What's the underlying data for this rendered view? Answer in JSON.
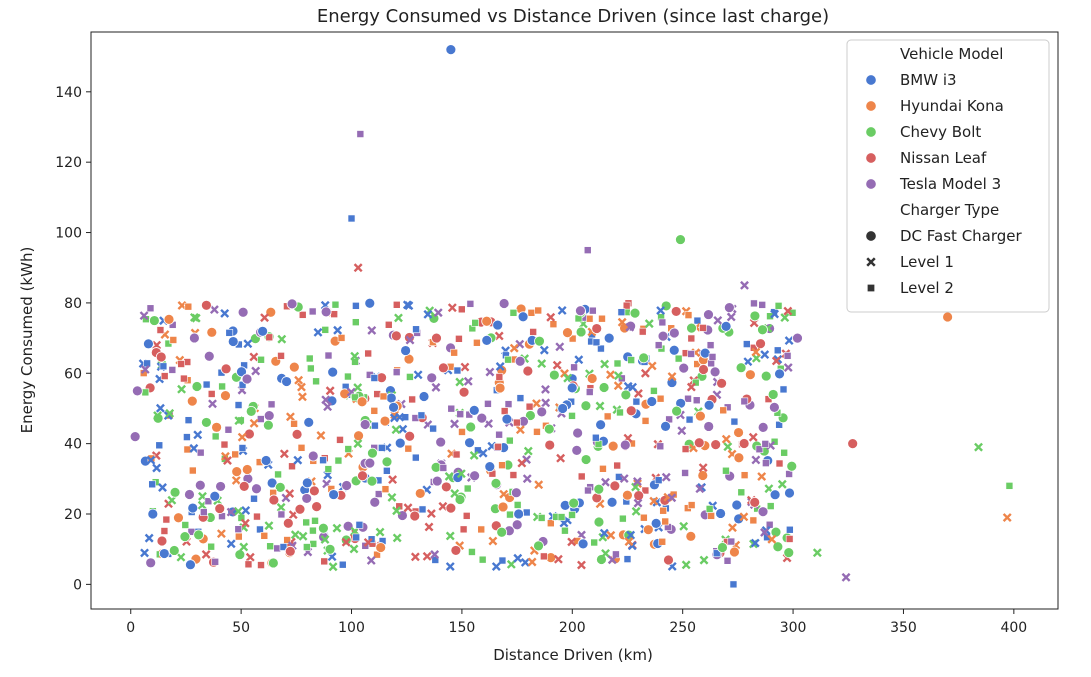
{
  "chart_data": {
    "type": "scatter",
    "title": "Energy Consumed vs Distance Driven (since last charge)",
    "xlabel": "Distance Driven (km)",
    "ylabel": "Energy Consumed (kWh)",
    "xlim": [
      -18,
      420
    ],
    "ylim": [
      -7,
      157
    ],
    "x_ticks": [
      0,
      50,
      100,
      150,
      200,
      250,
      300,
      350,
      400
    ],
    "y_ticks": [
      0,
      20,
      40,
      60,
      80,
      100,
      120,
      140
    ],
    "grid": false,
    "legend_placement": "top-right",
    "legend": {
      "hue_title": "Vehicle Model",
      "style_title": "Charger Type",
      "models": [
        {
          "name": "BMW i3",
          "color": "#4878d0"
        },
        {
          "name": "Hyundai Kona",
          "color": "#ee854a"
        },
        {
          "name": "Chevy Bolt",
          "color": "#6acc64"
        },
        {
          "name": "Nissan Leaf",
          "color": "#d65f5f"
        },
        {
          "name": "Tesla Model 3",
          "color": "#956cb4"
        }
      ],
      "chargers": [
        {
          "name": "DC Fast Charger",
          "marker": "circle"
        },
        {
          "name": "Level 1",
          "marker": "x"
        },
        {
          "name": "Level 2",
          "marker": "square"
        }
      ]
    },
    "notable_points": [
      {
        "x": 145,
        "y": 152,
        "model": "BMW i3",
        "charger": "DC Fast Charger"
      },
      {
        "x": 104,
        "y": 128,
        "model": "Tesla Model 3",
        "charger": "Level 2"
      },
      {
        "x": 100,
        "y": 104,
        "model": "BMW i3",
        "charger": "Level 2"
      },
      {
        "x": 103,
        "y": 90,
        "model": "Nissan Leaf",
        "charger": "Level 1"
      },
      {
        "x": 249,
        "y": 98,
        "model": "Chevy Bolt",
        "charger": "DC Fast Charger"
      },
      {
        "x": 207,
        "y": 95,
        "model": "Tesla Model 3",
        "charger": "Level 2"
      },
      {
        "x": 370,
        "y": 76,
        "model": "Hyundai Kona",
        "charger": "DC Fast Charger"
      },
      {
        "x": 327,
        "y": 40,
        "model": "Nissan Leaf",
        "charger": "DC Fast Charger"
      },
      {
        "x": 384,
        "y": 39,
        "model": "Chevy Bolt",
        "charger": "Level 1"
      },
      {
        "x": 398,
        "y": 28,
        "model": "Chevy Bolt",
        "charger": "Level 2"
      },
      {
        "x": 397,
        "y": 19,
        "model": "Hyundai Kona",
        "charger": "Level 1"
      },
      {
        "x": 311,
        "y": 9,
        "model": "Chevy Bolt",
        "charger": "Level 1"
      },
      {
        "x": 324,
        "y": 2,
        "model": "Tesla Model 3",
        "charger": "Level 1"
      },
      {
        "x": 273,
        "y": 0,
        "model": "BMW i3",
        "charger": "Level 2"
      },
      {
        "x": 302,
        "y": 70,
        "model": "Tesla Model 3",
        "charger": "DC Fast Charger"
      },
      {
        "x": 2,
        "y": 42,
        "model": "Tesla Model 3",
        "charger": "DC Fast Charger"
      },
      {
        "x": 3,
        "y": 55,
        "model": "Tesla Model 3",
        "charger": "DC Fast Charger"
      },
      {
        "x": 10,
        "y": 20,
        "model": "BMW i3",
        "charger": "DC Fast Charger"
      },
      {
        "x": 272,
        "y": 76,
        "model": "Tesla Model 3",
        "charger": "Level 1"
      },
      {
        "x": 278,
        "y": 85,
        "model": "Tesla Model 3",
        "charger": "Level 1"
      }
    ],
    "bulk_cloud": {
      "x_range": [
        5,
        300
      ],
      "y_range": [
        5,
        80
      ],
      "count": 1000,
      "models": [
        "BMW i3",
        "Hyundai Kona",
        "Chevy Bolt",
        "Nissan Leaf",
        "Tesla Model 3"
      ],
      "chargers": [
        "DC Fast Charger",
        "Level 1",
        "Level 2"
      ]
    }
  }
}
